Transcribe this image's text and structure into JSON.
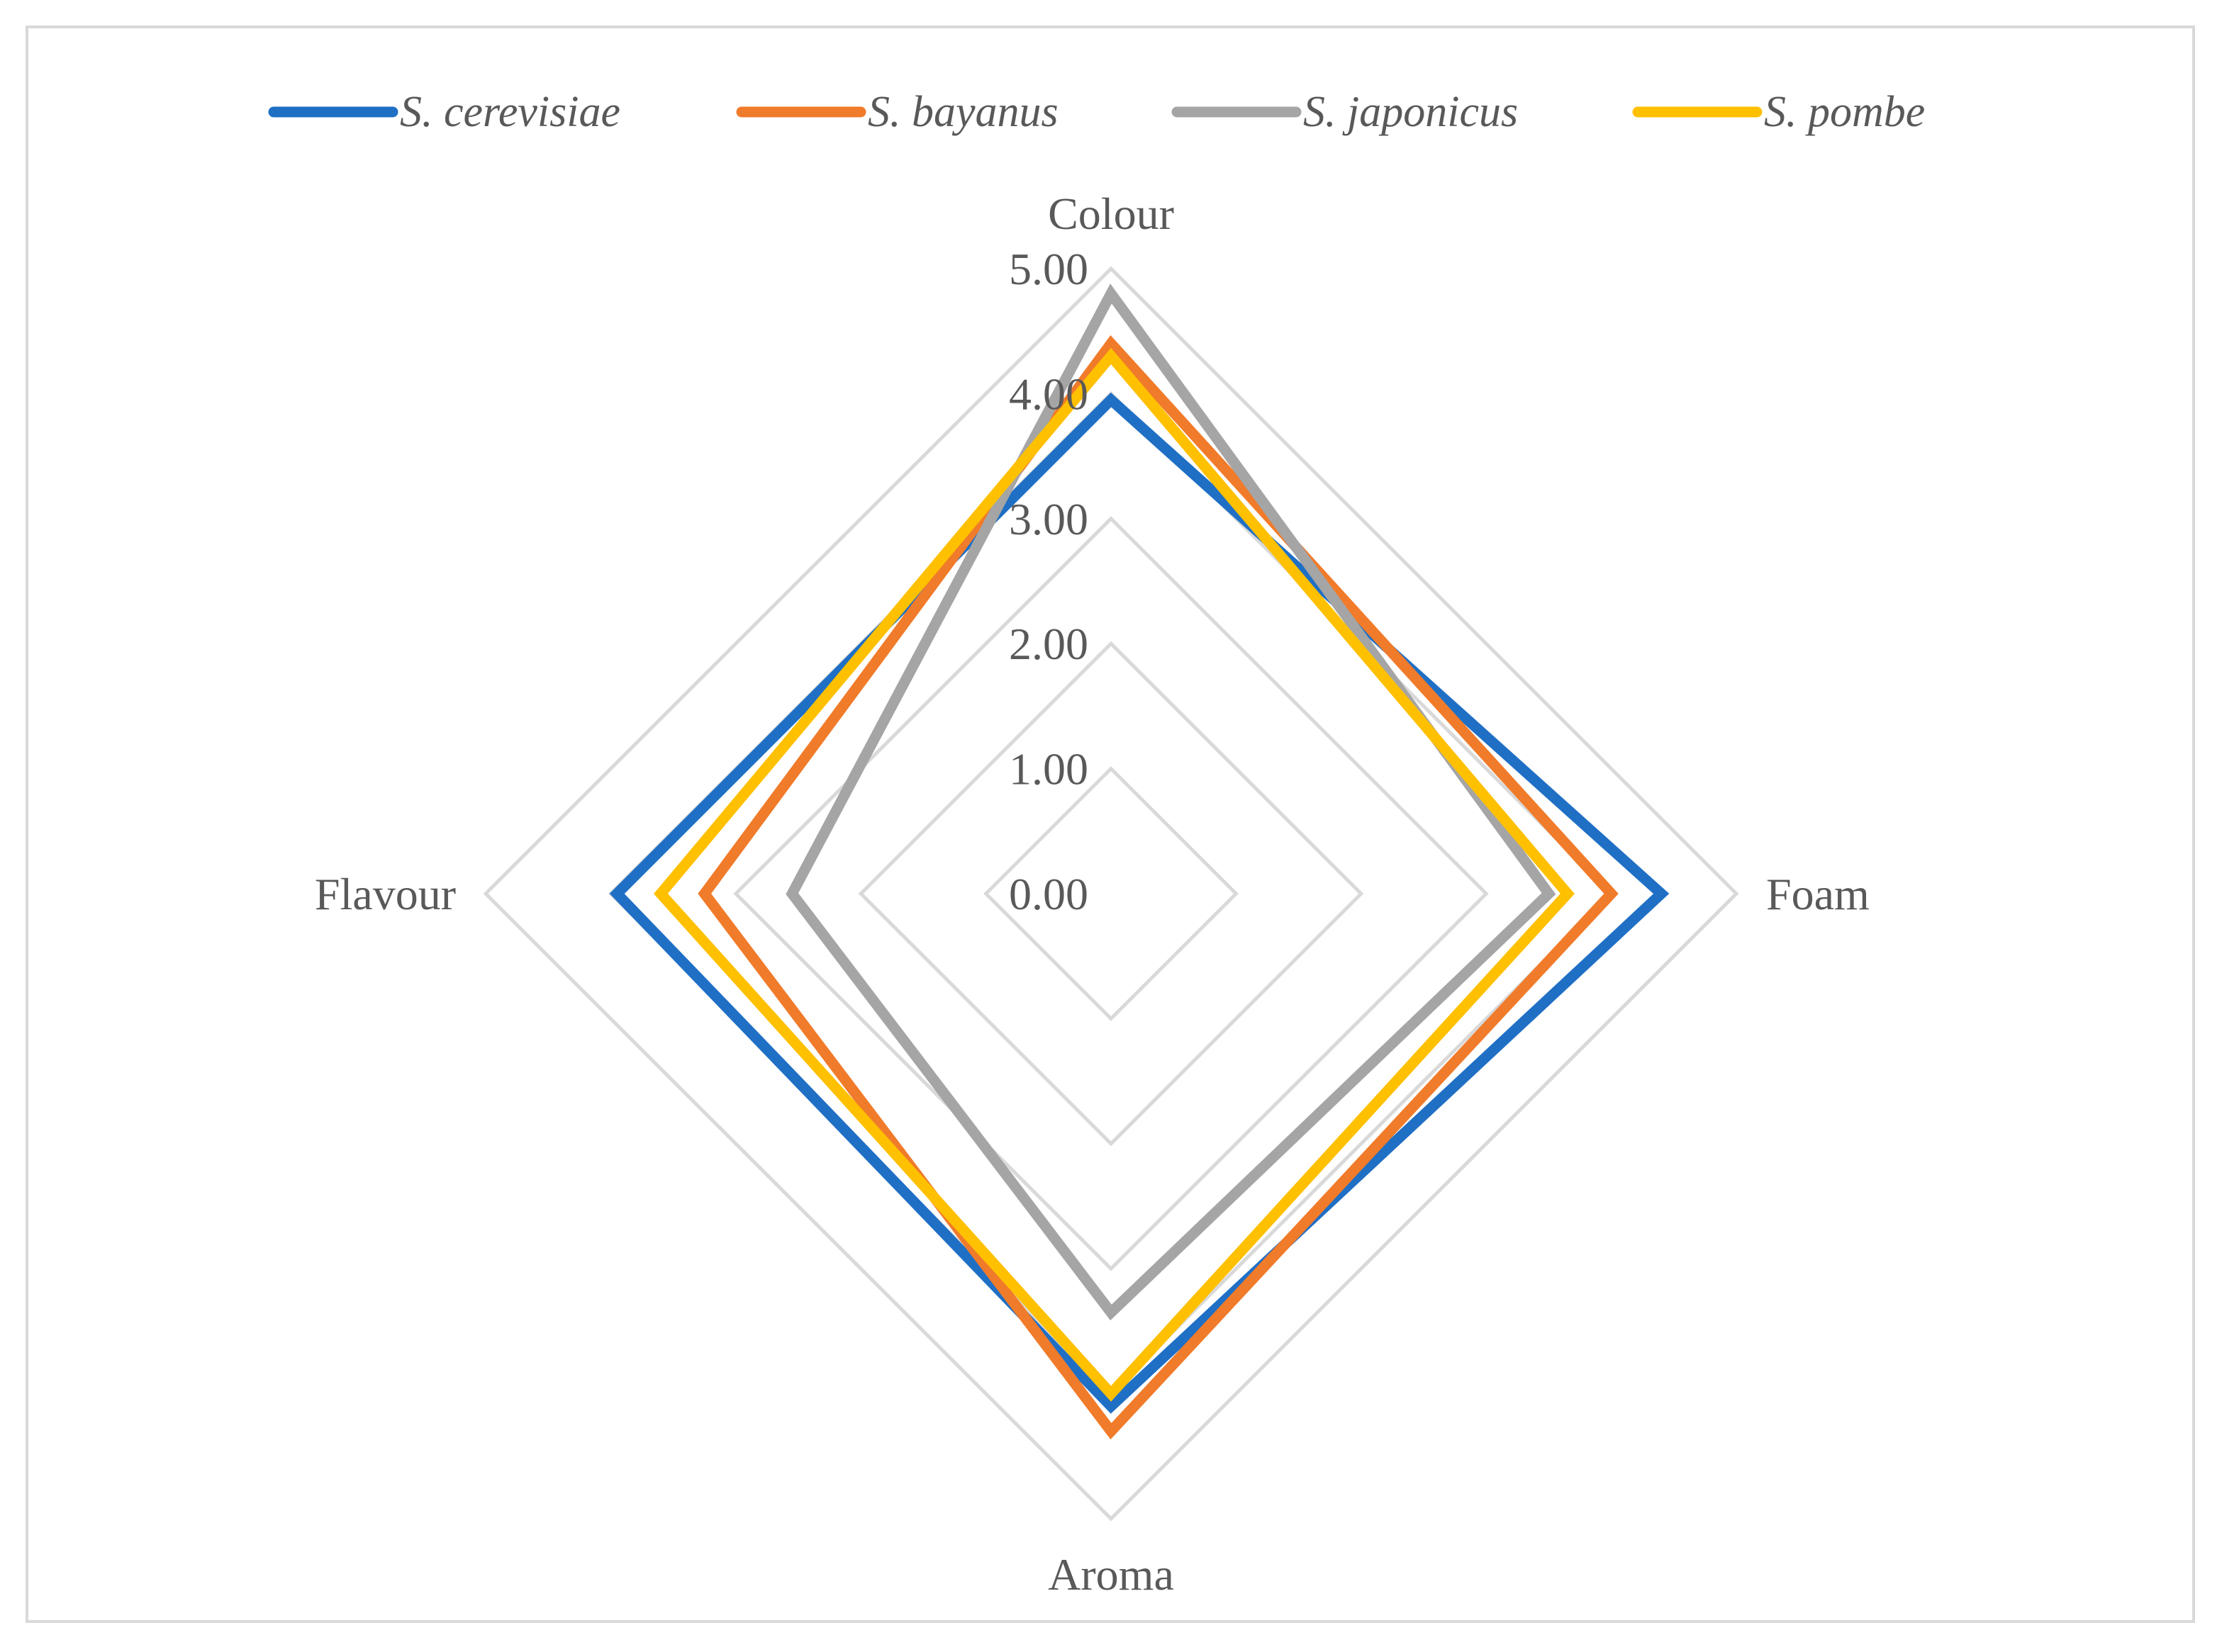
{
  "chart_data": {
    "type": "radar",
    "title": "",
    "axes": [
      "Colour",
      "Foam",
      "Aroma",
      "Flavour"
    ],
    "ticks": [
      "0.00",
      "1.00",
      "2.00",
      "3.00",
      "4.00",
      "5.00"
    ],
    "rmin": 0,
    "rmax": 5,
    "grid": true,
    "legend_position": "top",
    "series": [
      {
        "name": "S. cerevisiae",
        "color": "#1f6fc5",
        "values": [
          3.95,
          4.4,
          4.1,
          3.95
        ]
      },
      {
        "name": "S. bayanus",
        "color": "#f07b2a",
        "values": [
          4.4,
          4.0,
          4.3,
          3.25
        ]
      },
      {
        "name": "S. japonicus",
        "color": "#a5a5a5",
        "values": [
          4.8,
          3.5,
          3.35,
          2.55
        ]
      },
      {
        "name": "S. pombe",
        "color": "#ffc000",
        "values": [
          4.3,
          3.65,
          4.0,
          3.6
        ]
      }
    ]
  }
}
